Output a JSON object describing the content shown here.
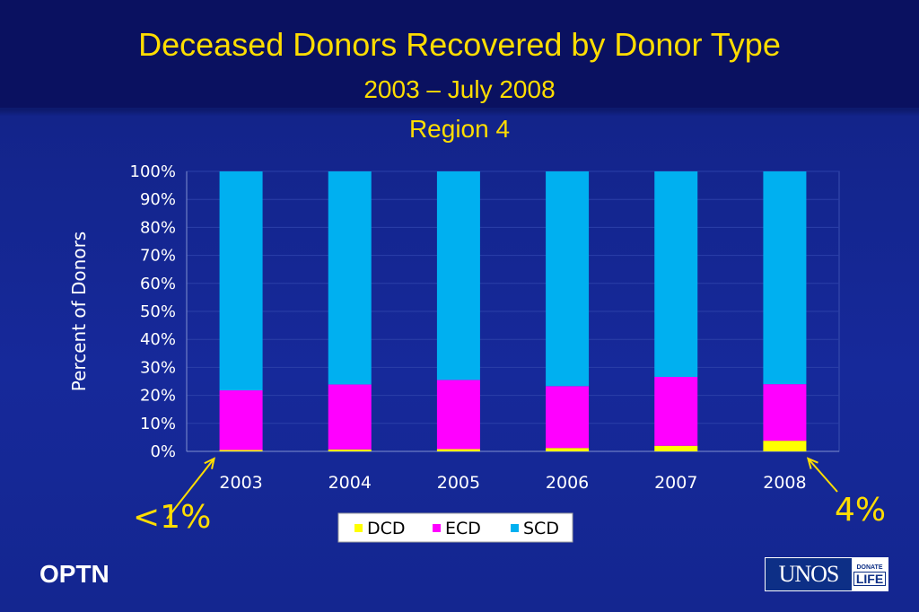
{
  "slide": {
    "title": "Deceased Donors Recovered by Donor Type",
    "subtitle1": "2003 – July 2008",
    "subtitle2": "Region 4",
    "footer_left": "OPTN",
    "logo_main": "UNOS",
    "logo_donate": "DONATE",
    "logo_life": "LIFE",
    "annotation_left": "<1%",
    "annotation_right": "4%"
  },
  "colors": {
    "DCD": "#ffff00",
    "ECD": "#ff00ff",
    "SCD": "#00b0f0",
    "text_title": "#ffdd00",
    "axis_text": "#ffffff"
  },
  "chart_data": {
    "type": "bar",
    "stacked": true,
    "percent": true,
    "title": "",
    "xlabel": "",
    "ylabel": "Percent of Donors",
    "categories": [
      "2003",
      "2004",
      "2005",
      "2006",
      "2007",
      "2008"
    ],
    "series": [
      {
        "name": "DCD",
        "values": [
          0.5,
          0.7,
          0.8,
          1.2,
          2.0,
          3.8
        ]
      },
      {
        "name": "ECD",
        "values": [
          21.3,
          23.2,
          24.7,
          22.1,
          24.6,
          20.2
        ]
      },
      {
        "name": "SCD",
        "values": [
          78.2,
          76.1,
          74.5,
          76.7,
          73.4,
          76.0
        ]
      }
    ],
    "ylim": [
      0,
      100
    ],
    "yticks": [
      0,
      10,
      20,
      30,
      40,
      50,
      60,
      70,
      80,
      90,
      100
    ],
    "ytick_labels": [
      "0%",
      "10%",
      "20%",
      "30%",
      "40%",
      "50%",
      "60%",
      "70%",
      "80%",
      "90%",
      "100%"
    ],
    "grid": true,
    "legend": "bottom"
  }
}
